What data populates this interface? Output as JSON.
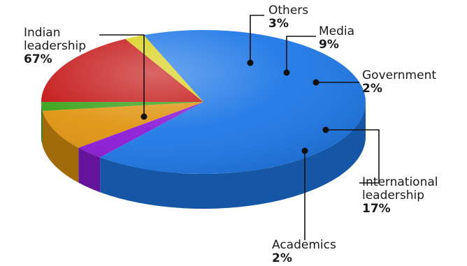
{
  "chart_data": {
    "type": "pie",
    "title": "",
    "slices": [
      {
        "label": "Indian leadership",
        "label_lines": [
          "Indian",
          "leadership"
        ],
        "value": 67,
        "value_text": "67%",
        "color": "#1f78e6"
      },
      {
        "label": "Others",
        "label_lines": [
          "Others"
        ],
        "value": 3,
        "value_text": "3%",
        "color": "#8b1bd6"
      },
      {
        "label": "Media",
        "label_lines": [
          "Media"
        ],
        "value": 9,
        "value_text": "9%",
        "color": "#e09410"
      },
      {
        "label": "Government",
        "label_lines": [
          "Government"
        ],
        "value": 2,
        "value_text": "2%",
        "color": "#3aa21a"
      },
      {
        "label": "International leadership",
        "label_lines": [
          "International",
          "leadership"
        ],
        "value": 17,
        "value_text": "17%",
        "color": "#c41414"
      },
      {
        "label": "Academics",
        "label_lines": [
          "Academics"
        ],
        "value": 2,
        "value_text": "2%",
        "color": "#d8d018"
      }
    ],
    "legend": "none",
    "style": "3d-tilted"
  }
}
